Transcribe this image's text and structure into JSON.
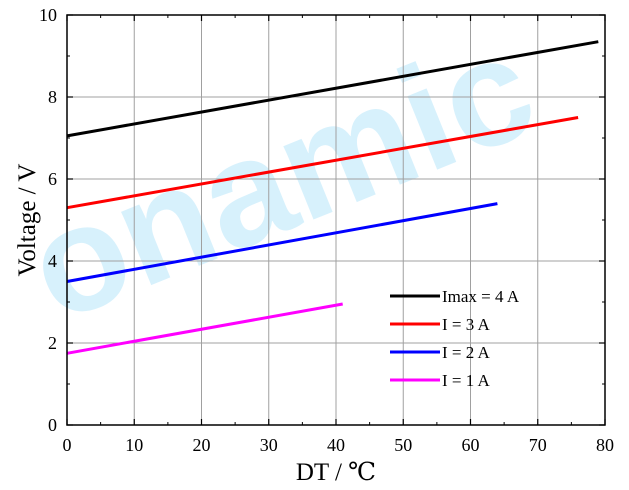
{
  "watermark": "onamic",
  "chart_data": {
    "type": "line",
    "title": "",
    "xlabel": "DT / ℃",
    "ylabel": "Voltage / V",
    "xlim": [
      0,
      80
    ],
    "ylim": [
      0,
      10
    ],
    "x_ticks": [
      "0",
      "10",
      "20",
      "30",
      "40",
      "50",
      "60",
      "70",
      "80"
    ],
    "y_ticks": [
      "0",
      "2",
      "4",
      "6",
      "8",
      "10"
    ],
    "grid": true,
    "legend_position": "bottom-right",
    "series": [
      {
        "name": "Imax = 4 A",
        "color": "#000000",
        "x": [
          0,
          79
        ],
        "y": [
          7.05,
          9.35
        ]
      },
      {
        "name": "I = 3 A",
        "color": "#ff0000",
        "x": [
          0,
          76
        ],
        "y": [
          5.3,
          7.5
        ]
      },
      {
        "name": "I = 2 A",
        "color": "#0000ff",
        "x": [
          0,
          64
        ],
        "y": [
          3.5,
          5.4
        ]
      },
      {
        "name": "I = 1 A",
        "color": "#ff00ff",
        "x": [
          0,
          41
        ],
        "y": [
          1.75,
          2.95
        ]
      }
    ]
  }
}
